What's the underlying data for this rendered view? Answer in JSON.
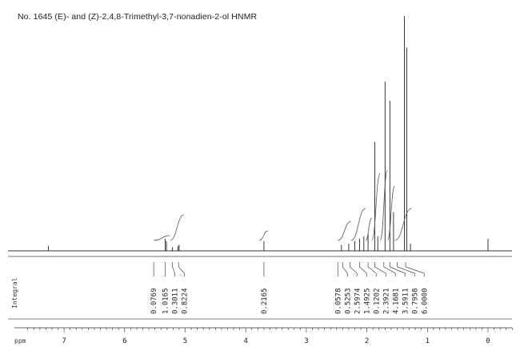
{
  "title": "No. 1645 (E)- and (Z)-2,4,8-Trimethyl-3,7-nonadien-2-ol HNMR",
  "chart_data": {
    "type": "line",
    "title": "No. 1645 (E)- and (Z)-2,4,8-Trimethyl-3,7-nonadien-2-ol HNMR",
    "xlabel": "ppm",
    "ylabel": "",
    "xlim": [
      8.0,
      -0.5
    ],
    "x_ticks": [
      7,
      6,
      5,
      4,
      3,
      2,
      1,
      0
    ],
    "integral_axis_label": "Integral",
    "peaks": [
      {
        "ppm": 7.26,
        "height": 0.02
      },
      {
        "ppm": 5.33,
        "height": 0.05
      },
      {
        "ppm": 5.31,
        "height": 0.04
      },
      {
        "ppm": 5.21,
        "height": 0.015
      },
      {
        "ppm": 5.12,
        "height": 0.02
      },
      {
        "ppm": 5.1,
        "height": 0.025
      },
      {
        "ppm": 3.7,
        "height": 0.04
      },
      {
        "ppm": 2.42,
        "height": 0.025
      },
      {
        "ppm": 2.3,
        "height": 0.03
      },
      {
        "ppm": 2.2,
        "height": 0.04
      },
      {
        "ppm": 2.12,
        "height": 0.05
      },
      {
        "ppm": 2.05,
        "height": 0.06
      },
      {
        "ppm": 1.98,
        "height": 0.07
      },
      {
        "ppm": 1.87,
        "height": 0.45
      },
      {
        "ppm": 1.82,
        "height": 0.06
      },
      {
        "ppm": 1.7,
        "height": 0.7
      },
      {
        "ppm": 1.62,
        "height": 0.62
      },
      {
        "ppm": 1.56,
        "height": 0.16
      },
      {
        "ppm": 1.38,
        "height": 0.97
      },
      {
        "ppm": 1.34,
        "height": 0.84
      },
      {
        "ppm": 1.28,
        "height": 0.03
      },
      {
        "ppm": 0.0,
        "height": 0.05
      }
    ],
    "integral_steps": [
      {
        "from": 5.52,
        "to": 5.25,
        "rise": 0.03
      },
      {
        "from": 5.25,
        "to": 5.02,
        "rise": 0.16
      },
      {
        "from": 3.78,
        "to": 3.63,
        "rise": 0.06
      },
      {
        "from": 2.48,
        "to": 2.26,
        "rise": 0.12
      },
      {
        "from": 2.26,
        "to": 2.02,
        "rise": 0.2
      },
      {
        "from": 2.02,
        "to": 1.92,
        "rise": 0.14
      },
      {
        "from": 1.92,
        "to": 1.78,
        "rise": 0.42
      },
      {
        "from": 1.78,
        "to": 1.66,
        "rise": 0.44
      },
      {
        "from": 1.66,
        "to": 1.54,
        "rise": 0.34
      },
      {
        "from": 1.54,
        "to": 1.26,
        "rise": 0.2
      }
    ],
    "integrals": [
      {
        "ppm": 5.52,
        "value": "0.0769"
      },
      {
        "ppm": 5.33,
        "value": "1.0165"
      },
      {
        "ppm": 5.21,
        "value": "0.3011"
      },
      {
        "ppm": 5.11,
        "value": "0.8224"
      },
      {
        "ppm": 3.7,
        "value": "0.2165"
      },
      {
        "ppm": 2.48,
        "value": "0.0578"
      },
      {
        "ppm": 2.4,
        "value": "0.5253"
      },
      {
        "ppm": 2.28,
        "value": "2.5974"
      },
      {
        "ppm": 2.12,
        "value": "1.4925"
      },
      {
        "ppm": 1.98,
        "value": "0.1202"
      },
      {
        "ppm": 1.87,
        "value": "2.3921"
      },
      {
        "ppm": 1.72,
        "value": "4.1681"
      },
      {
        "ppm": 1.62,
        "value": "3.5911"
      },
      {
        "ppm": 1.5,
        "value": "0.7958"
      },
      {
        "ppm": 1.36,
        "value": "6.0000"
      }
    ],
    "grid": false,
    "legend": "none"
  }
}
